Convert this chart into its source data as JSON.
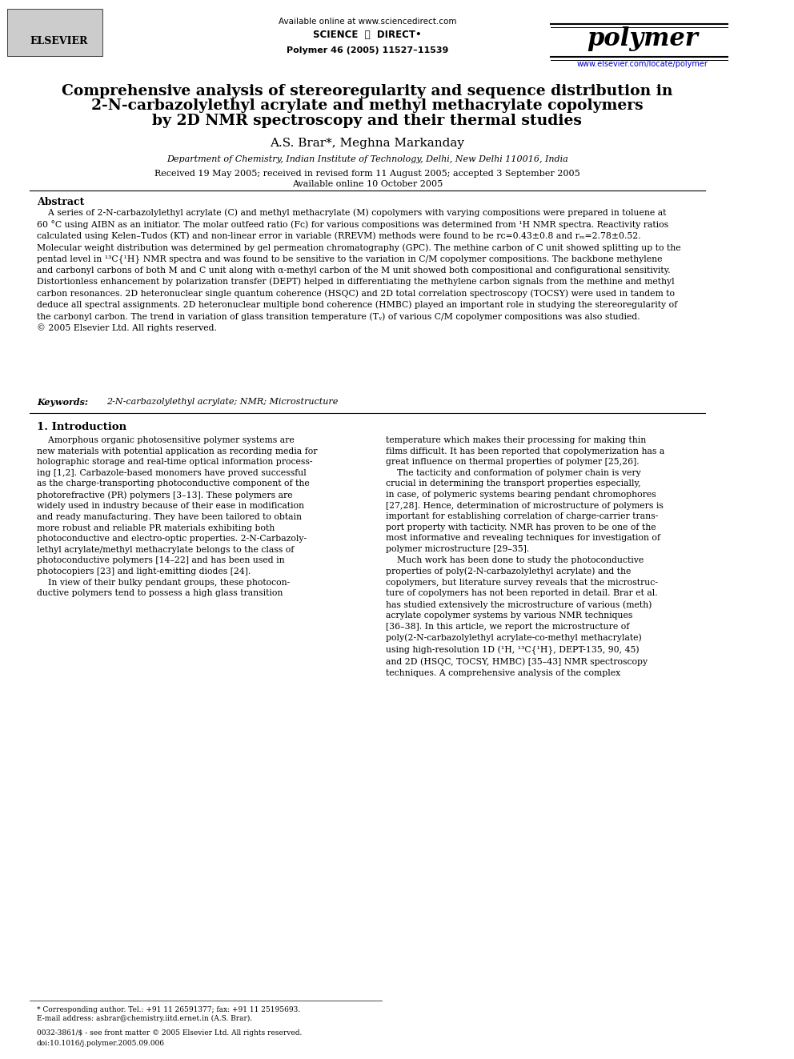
{
  "bg_color": "#ffffff",
  "page_width": 9.92,
  "page_height": 13.23,
  "header": {
    "available_online": "Available online at www.sciencedirect.com",
    "science_direct": "SCIENCE ⓓ DIRECT•",
    "journal_info": "Polymer 46 (2005) 11527–11539",
    "journal_name": "polymer",
    "journal_url": "www.elsevier.com/locate/polymer",
    "elsevier": "ELSEVIER"
  },
  "title": "Comprehensive analysis of stereoregularity and sequence distribution in\n2-N-carbazolylethyl acrylate and methyl methacrylate copolymers\nby 2D NMR spectroscopy and their thermal studies",
  "authors": "A.S. Brar*, Meghna Markanday",
  "affiliation": "Department of Chemistry, Indian Institute of Technology, Delhi, New Delhi 110016, India",
  "received": "Received 19 May 2005; received in revised form 11 August 2005; accepted 3 September 2005",
  "available": "Available online 10 October 2005",
  "abstract_heading": "Abstract",
  "abstract_text": "A series of 2-N-carbazolylethyl acrylate (C) and methyl methacrylate (M) copolymers with varying compositions were prepared in toluene at\n60 °C using AIBN as an initiator. The molar outfeed ratio (F₁) for various compositions was determined from ¹H NMR spectra. Reactivity ratios\ncalculated using Kelen–Tudos (KT) and non-linear error in variable (RREVM) methods were found to be r₁=0.43±0.8 and r₂=2.78±0.52.\nMolecular weight distribution was determined by gel permeation chromatography (GPC). The methine carbon of C unit showed splitting up to the\npentad level in ¹³C{¹H} NMR spectra and was found to be sensitive to the variation in C/M copolymer compositions. The backbone methylene\nand carbonyl carbons of both M and C unit along with α-methyl carbon of the M unit showed both compositional and configurational sensitivity.\nDistortionless enhancement by polarization transfer (DEPT) helped in differentiating the methylene carbon signals from the methine and methyl\ncarbon resonances. 2D heteronuclear single quantum coherence (HSQC) and 2D total correlation spectroscopy (TOCSY) were used in tandem to\ndeduce all spectral assignments. 2D heteronuclear multiple bond coherence (HMBC) played an important role in studying the stereoregularity of\nthe carbonyl carbon. The trend in variation of glass transition temperature (Tᵧ) of various C/M copolymer compositions was also studied.\n© 2005 Elsevier Ltd. All rights reserved.",
  "keywords_label": "Keywords:",
  "keywords_text": "2-N-carbazolylethyl acrylate; NMR; Microstructure",
  "section1_heading": "1. Introduction",
  "intro_col1": "Amorphous organic photosensitive polymer systems are\nnew materials with potential application as recording media for\nholographic storage and real-time optical information process-\nsing [1,2]. Carbazole-based monomers have proved successful\nas the charge-transporting photoconductive component of the\nphotorefractive (PR) polymers [3–13]. These polymers are\nwidely used in industry because of their ease in modification\nand ready manufacturing. They have been tailored to obtain\nmore robust and reliable PR materials exhibiting both\nphotoconductive and electro-optic properties. 2-N-Carbazoly-\nlethyl acrylate/methyl methacrylate belongs to the class of\nphotoconductive polymers [14–22] and has been used in\nphotocopiers [23] and light-emitting diodes [24].\n    In view of their bulky pendant groups, these photoconductive polymers tend to possess a high glass transition",
  "intro_col2": "temperature which makes their processing for making thin\nfilms difficult. It has been reported that copolymerization has a\ngreat influence on thermal properties of polymer [25,26].\n    The tacticity and conformation of polymer chain is very\ncrucial in determining the transport properties especially,\nin case, of polymeric systems bearing pendant chromophores\n[27,28]. Hence, determination of microstructure of polymers is\nimportant for establishing correlation of charge-carrier trans-\nport property with tacticity. NMR has proven to be one of the\nmost informative and revealing techniques for investigation of\npolymer microstructure [29–35].\n    Much work has been done to study the photoconductive\nproperties of poly(2-N-carbazolylethyl acrylate) and the\ncopolymers, but literature survey reveals that the microstruc-\nture of copolymers has not been reported in detail. Brar et al.\nhas studied extensively the microstructure of various (meth)\nacrylate copolymer systems by various NMR techniques\n[36–38]. In this article, we report the microstructure of\npoly(2-N-carbazolylethyl acrylate-co-methyl methacrylate)\nusing high-resolution 1D (¹H, ¹³C{¹H}, DEPT-135, 90, 45)\nand 2D (HSQC, TOCSY, HMBC) [35–43] NMR spectroscopy\ntechniques. A comprehensive analysis of the complex",
  "footnote1": "* Corresponding author. Tel.: +91 11 26591377; fax: +91 11 25195693.",
  "footnote2": "E-mail address: asbrar@chemistry.iitd.ernet.in (A.S. Brar).",
  "footnote3": "0032-3861/$ - see front matter © 2005 Elsevier Ltd. All rights reserved.",
  "footnote4": "doi:10.1016/j.polymer.2005.09.006"
}
